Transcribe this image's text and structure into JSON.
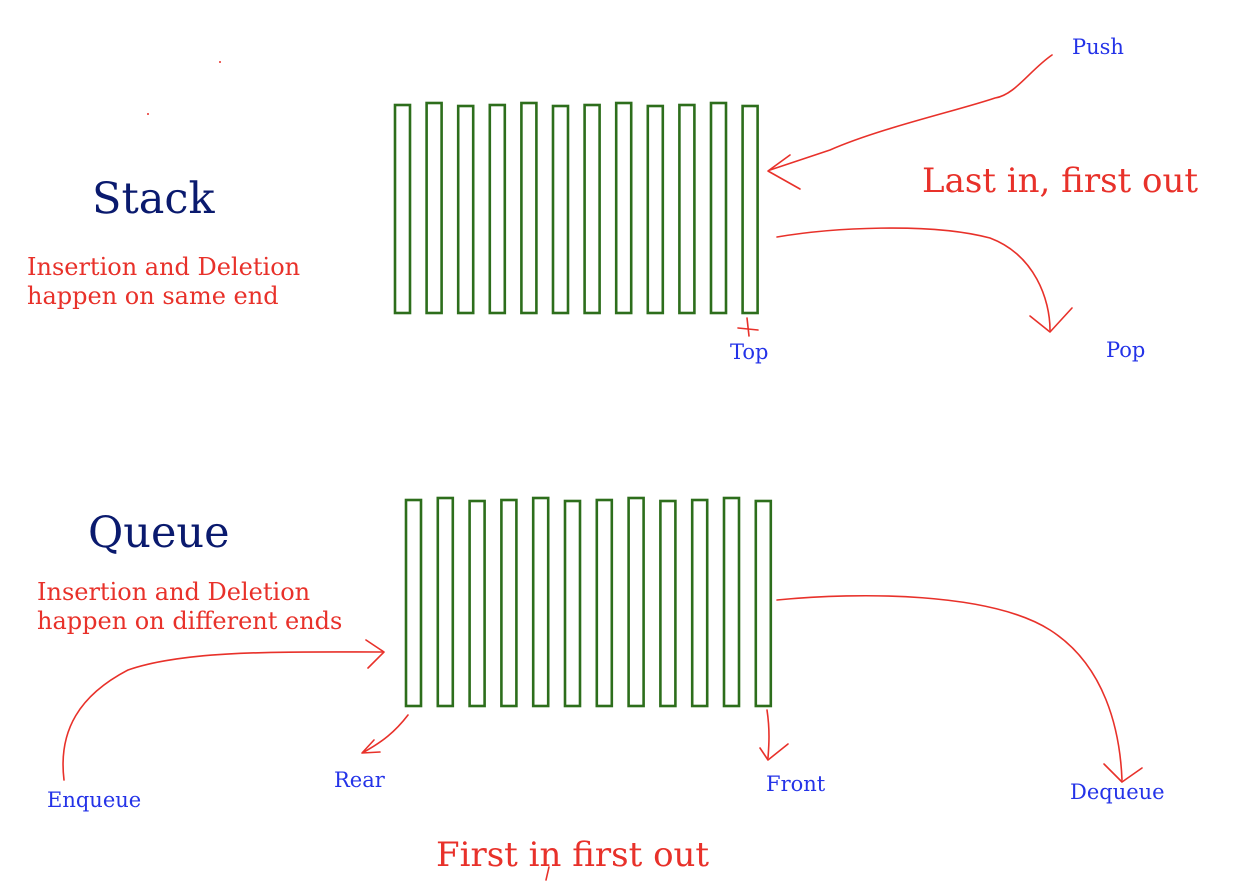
{
  "colors": {
    "cell_stroke": "#2d6e1c",
    "arrow": "#e8312a",
    "title": "#0a1a6e",
    "annotation": "#e8312a",
    "pointer_label": "#2433e8"
  },
  "stack": {
    "title": "Stack",
    "description_line1": "Insertion and Deletion",
    "description_line2": "happen on same end",
    "principle": "Last in, first out",
    "cell_count": 12,
    "labels": {
      "push": "Push",
      "pop": "Pop",
      "top": "Top"
    }
  },
  "queue": {
    "title": "Queue",
    "description_line1": "Insertion and Deletion",
    "description_line2": "happen on different ends",
    "principle": "First in first out",
    "cell_count": 12,
    "labels": {
      "enqueue": "Enqueue",
      "dequeue": "Dequeue",
      "rear": "Rear",
      "front": "Front"
    }
  }
}
